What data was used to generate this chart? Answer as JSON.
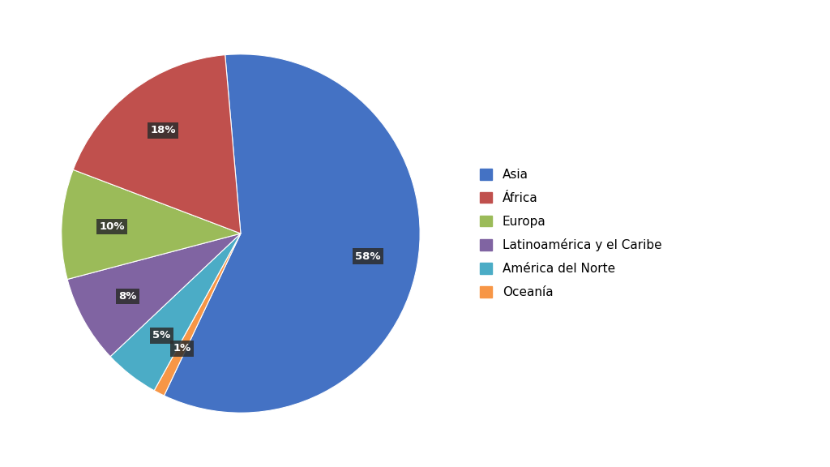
{
  "labels": [
    "Asia",
    "África",
    "Europa",
    "Latinoamérica y el Caribe",
    "América del Norte",
    "Oceanía"
  ],
  "values": [
    59,
    18,
    10,
    8,
    5,
    1
  ],
  "colors": [
    "#4472C4",
    "#C0504D",
    "#9BBB59",
    "#8064A2",
    "#4BACC6",
    "#F79646"
  ],
  "background_color": "#FFFFFF",
  "legend_fontsize": 11,
  "autopct_fontsize": 9.5
}
